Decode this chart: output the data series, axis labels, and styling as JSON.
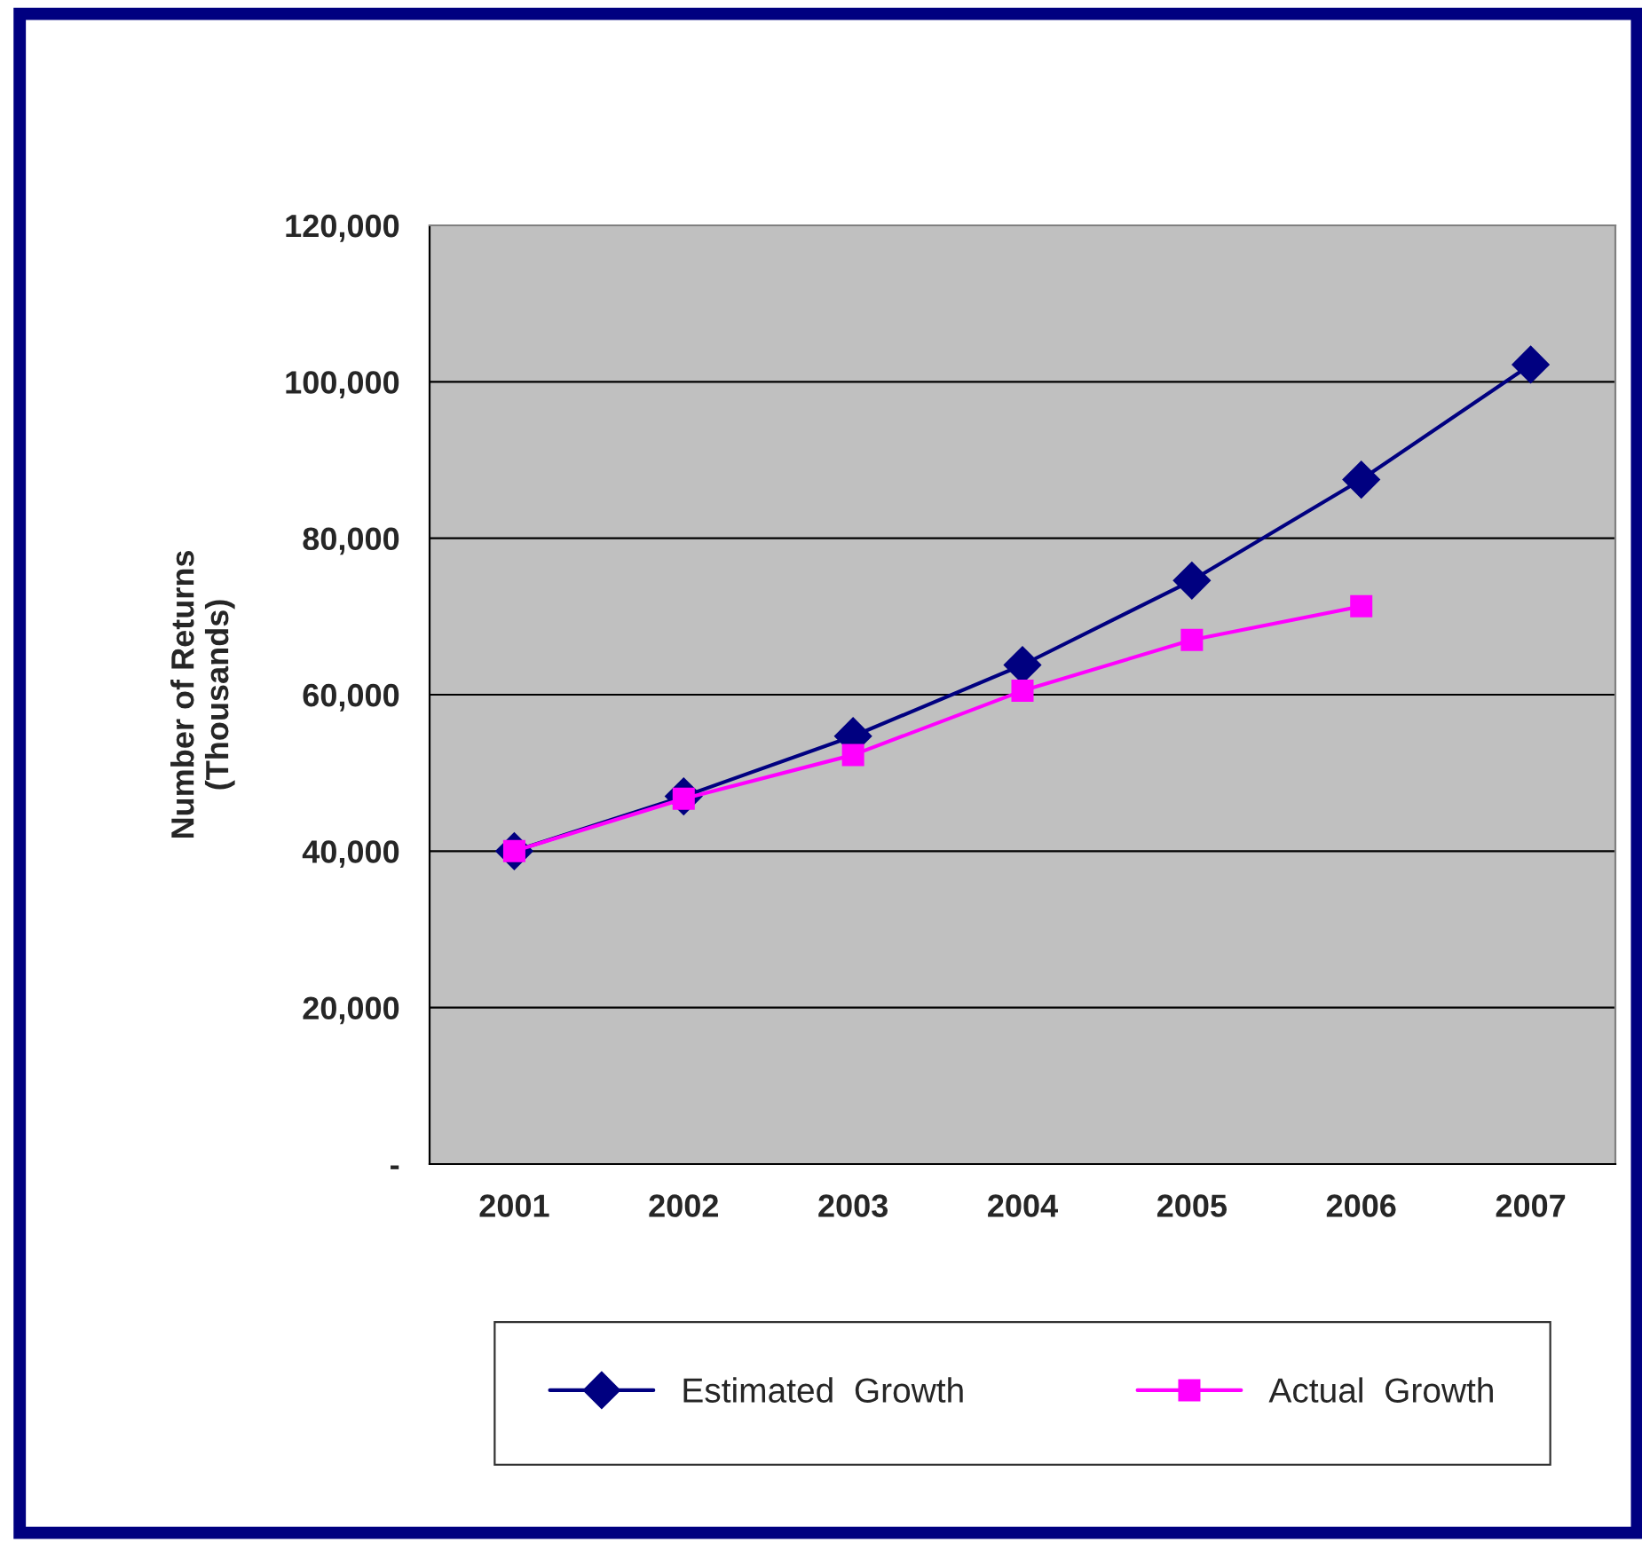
{
  "chart_data": {
    "type": "line",
    "ylabel": "Number of Returns\n(Thousands)",
    "categories": [
      "2001",
      "2002",
      "2003",
      "2004",
      "2005",
      "2006",
      "2007"
    ],
    "series": [
      {
        "name": "Estimated  Growth",
        "color": "#000080",
        "marker": "diamond",
        "values": [
          40000,
          47000,
          54700,
          63800,
          74600,
          87500,
          102200
        ]
      },
      {
        "name": "Actual  Growth",
        "color": "#ff00ff",
        "marker": "square",
        "values": [
          40000,
          46700,
          52300,
          60500,
          67000,
          71300,
          null
        ]
      }
    ],
    "ylim": [
      0,
      120000
    ],
    "yticks": [
      {
        "value": 0,
        "label": "-"
      },
      {
        "value": 20000,
        "label": "20,000"
      },
      {
        "value": 40000,
        "label": "40,000"
      },
      {
        "value": 60000,
        "label": "60,000"
      },
      {
        "value": 80000,
        "label": "80,000"
      },
      {
        "value": 100000,
        "label": "100,000"
      },
      {
        "value": 120000,
        "label": "120,000"
      }
    ],
    "grid": "y",
    "legend": "bottom",
    "line_style": "solid"
  }
}
